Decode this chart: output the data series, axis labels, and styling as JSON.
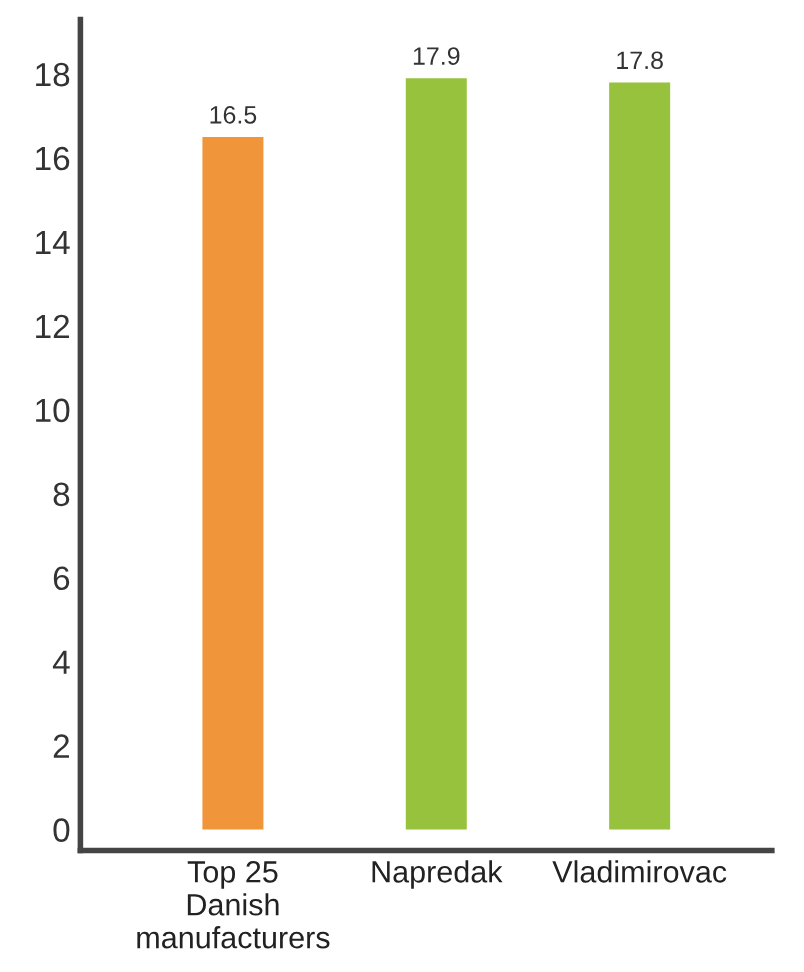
{
  "chart_data": {
    "type": "bar",
    "categories": [
      "Top 25\nDanish\nmanufacturers",
      "Napredak",
      "Vladimirovac"
    ],
    "values": [
      16.5,
      17.9,
      17.8
    ],
    "colors": [
      "#f0953a",
      "#97c23e",
      "#97c23e"
    ],
    "ylim": [
      -0.5,
      19.3
    ],
    "yticks": [
      0,
      2,
      4,
      6,
      8,
      10,
      12,
      14,
      16,
      18
    ],
    "data_labels": true,
    "grid": false
  }
}
